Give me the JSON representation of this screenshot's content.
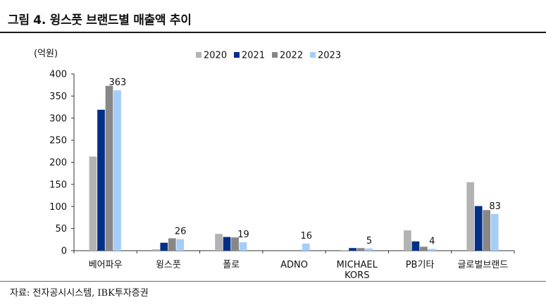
{
  "title": "그림 4. 윙스풋 브랜드별 매출액 추이",
  "source": "자료: 전자공시시스템, IBK투자증권",
  "chart_data": {
    "type": "bar",
    "unit_label": "(억원)",
    "categories": [
      [
        "베어파우"
      ],
      [
        "윙스풋"
      ],
      [
        "폴로"
      ],
      [
        "ADNO"
      ],
      [
        "MICHAEL",
        "KORS"
      ],
      [
        "PB기타"
      ],
      [
        "글로벌브랜드"
      ]
    ],
    "series": [
      {
        "name": "2020",
        "color": "#b3b3b3",
        "values": [
          213,
          3,
          38,
          0,
          1,
          46,
          155
        ]
      },
      {
        "name": "2021",
        "color": "#002f87",
        "values": [
          319,
          18,
          31,
          0,
          6,
          21,
          101
        ]
      },
      {
        "name": "2022",
        "color": "#878787",
        "values": [
          373,
          28,
          30,
          0,
          6,
          9,
          92
        ]
      },
      {
        "name": "2023",
        "color": "#a5cdfa",
        "values": [
          363,
          26,
          19,
          16,
          5,
          4,
          83
        ]
      }
    ],
    "data_labels": {
      "series": "2023",
      "values": [
        "363",
        "26",
        "19",
        "16",
        "5",
        "4",
        "83"
      ]
    },
    "ylim": [
      0,
      400
    ],
    "yticks": [
      "0",
      "50",
      "100",
      "150",
      "200",
      "250",
      "300",
      "350",
      "400"
    ],
    "grid": false,
    "legend_position": "top"
  }
}
